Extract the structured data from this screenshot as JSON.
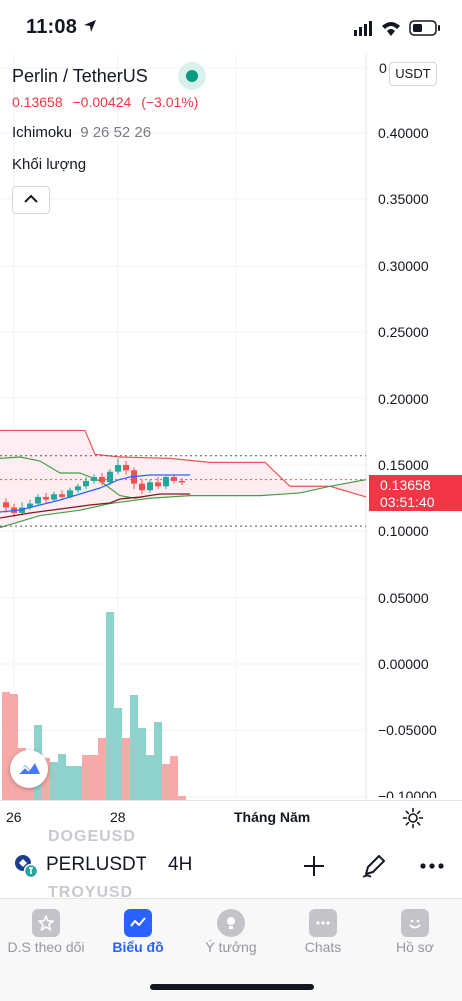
{
  "status_bar": {
    "time": "11:08",
    "icons": [
      "location-arrow-icon",
      "signal-icon",
      "wifi-icon",
      "battery-icon"
    ]
  },
  "chart": {
    "symbol_title": "Perlin / TetherUS",
    "last_price": "0.13658",
    "change": "−0.00424",
    "change_pct": "(−3.01%)",
    "indicator_name": "Ichimoku",
    "indicator_params": "9 26 52 26",
    "volume_label": "Khối lượng",
    "currency": "USDT",
    "countdown": "03:51:40",
    "y_axis_labels": [
      "0.40000",
      "0.35000",
      "0.30000",
      "0.25000",
      "0.20000",
      "0.15000",
      "0.10000",
      "0.05000",
      "0.00000",
      "−0.05000",
      "−0.10000"
    ],
    "y_axis_top_partial": "0",
    "x_axis_labels": [
      "26",
      "28",
      "Tháng Năm"
    ],
    "colors": {
      "up": "#26a69a",
      "down": "#ef5350",
      "price_tag": "#f23645",
      "accent": "#2962ff",
      "live": "#089981"
    }
  },
  "symbol_bar": {
    "symbol": "PERLUSDT",
    "timeframe": "4H",
    "ghost_items": [
      "DOGEUSD",
      "TROYUSD"
    ],
    "actions": [
      "plus-icon",
      "draw-pen-icon",
      "more-icon"
    ]
  },
  "tabs": [
    {
      "label": "D.S theo dõi",
      "icon": "star-icon",
      "active": false
    },
    {
      "label": "Biểu đồ",
      "icon": "chart-icon",
      "active": true
    },
    {
      "label": "Ý tưởng",
      "icon": "lightbulb-icon",
      "active": false
    },
    {
      "label": "Chats",
      "icon": "chat-icon",
      "active": false
    },
    {
      "label": "Hồ sơ",
      "icon": "profile-icon",
      "active": false
    }
  ]
}
